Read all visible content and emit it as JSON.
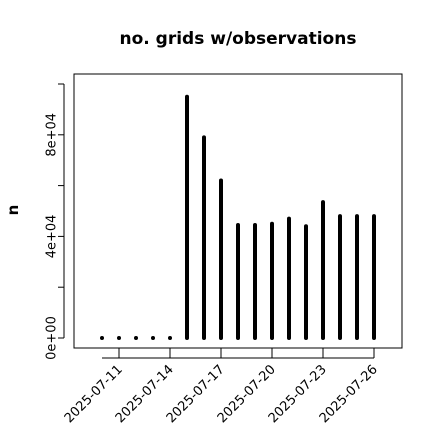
{
  "chart_data": {
    "type": "bar",
    "title": "no. grids w/observations",
    "ylabel": "n",
    "xlabel": "",
    "ylim": [
      0,
      100000
    ],
    "y_ticks": [
      {
        "value": 0,
        "label": "0e+00"
      },
      {
        "value": 40000,
        "label": "4e+04"
      },
      {
        "value": 80000,
        "label": "8e+04"
      }
    ],
    "y_minor_ticks": [
      20000,
      60000,
      100000
    ],
    "x_ticks": [
      {
        "index": 1,
        "label": "2025-07-11",
        "color": "#000000"
      },
      {
        "index": 4,
        "label": "2025-07-14",
        "color": "#000000"
      },
      {
        "index": 7,
        "label": "2025-07-17",
        "color": "#228b22"
      },
      {
        "index": 10,
        "label": "2025-07-20",
        "color": "#000000"
      },
      {
        "index": 13,
        "label": "2025-07-23",
        "color": "#000000"
      },
      {
        "index": 16,
        "label": "2025-07-26",
        "color": "#000000"
      }
    ],
    "categories": [
      "2025-07-10",
      "2025-07-11",
      "2025-07-12",
      "2025-07-13",
      "2025-07-14",
      "2025-07-15",
      "2025-07-16",
      "2025-07-17",
      "2025-07-18",
      "2025-07-19",
      "2025-07-20",
      "2025-07-21",
      "2025-07-22",
      "2025-07-23",
      "2025-07-24",
      "2025-07-25",
      "2025-07-26"
    ],
    "values": [
      0,
      0,
      0,
      0,
      0,
      95000,
      79000,
      62000,
      44500,
      44500,
      45000,
      47000,
      44000,
      53500,
      48000,
      48000,
      48000
    ],
    "bar_color": "#000000",
    "grid": false
  }
}
